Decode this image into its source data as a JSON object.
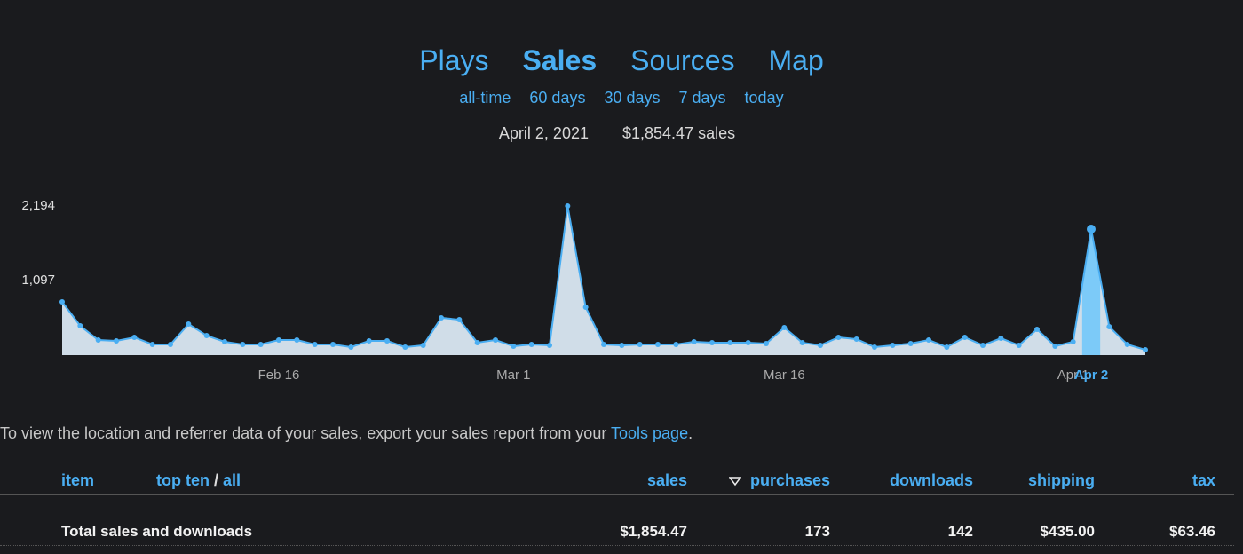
{
  "nav": {
    "tabs": [
      "Plays",
      "Sales",
      "Sources",
      "Map"
    ],
    "active": 1,
    "ranges": [
      "all-time",
      "60 days",
      "30 days",
      "7 days",
      "today"
    ]
  },
  "summary": {
    "date": "April 2, 2021",
    "sales": "$1,854.47 sales"
  },
  "chart_data": {
    "type": "area",
    "categories": [
      null,
      null,
      null,
      null,
      null,
      null,
      null,
      null,
      null,
      null,
      null,
      null,
      "Feb 16",
      null,
      null,
      null,
      null,
      null,
      null,
      null,
      null,
      null,
      null,
      null,
      null,
      "Mar 1",
      null,
      null,
      null,
      null,
      null,
      null,
      null,
      null,
      null,
      null,
      null,
      null,
      null,
      null,
      "Mar 16",
      null,
      null,
      null,
      null,
      null,
      null,
      null,
      null,
      null,
      null,
      null,
      null,
      null,
      null,
      null,
      "Apr 1",
      "Apr 2",
      null,
      null,
      null
    ],
    "values": [
      784,
      431,
      222,
      209,
      261,
      157,
      157,
      457,
      287,
      196,
      157,
      157,
      222,
      222,
      157,
      157,
      118,
      209,
      209,
      118,
      144,
      549,
      522,
      183,
      222,
      131,
      157,
      144,
      2194,
      705,
      157,
      144,
      157,
      157,
      157,
      196,
      183,
      183,
      183,
      170,
      405,
      183,
      144,
      261,
      235,
      118,
      144,
      170,
      222,
      118,
      261,
      144,
      248,
      144,
      379,
      131,
      196,
      1854.47,
      418,
      157,
      78
    ],
    "ylim": [
      0,
      2194
    ],
    "yticks": [
      {
        "value": 1097,
        "label": "1,097"
      },
      {
        "value": 2194,
        "label": "2,194"
      }
    ],
    "color": "#4aaef2",
    "fill": "#d0dde8",
    "highlight_color": "#7ccaf8"
  },
  "note": {
    "text": "To view the location and referrer data of your sales, export your sales report from your",
    "link": "Tools page",
    "end": "."
  },
  "table": {
    "item": "item",
    "top_ten": "top ten",
    "sep": "/",
    "all": "all",
    "columns": [
      "sales",
      "purchases",
      "downloads",
      "shipping",
      "tax"
    ],
    "rows": [
      [
        "Total sales and downloads",
        "$1,854.47",
        "173",
        "142",
        "$435.00",
        "$63.46"
      ]
    ]
  }
}
